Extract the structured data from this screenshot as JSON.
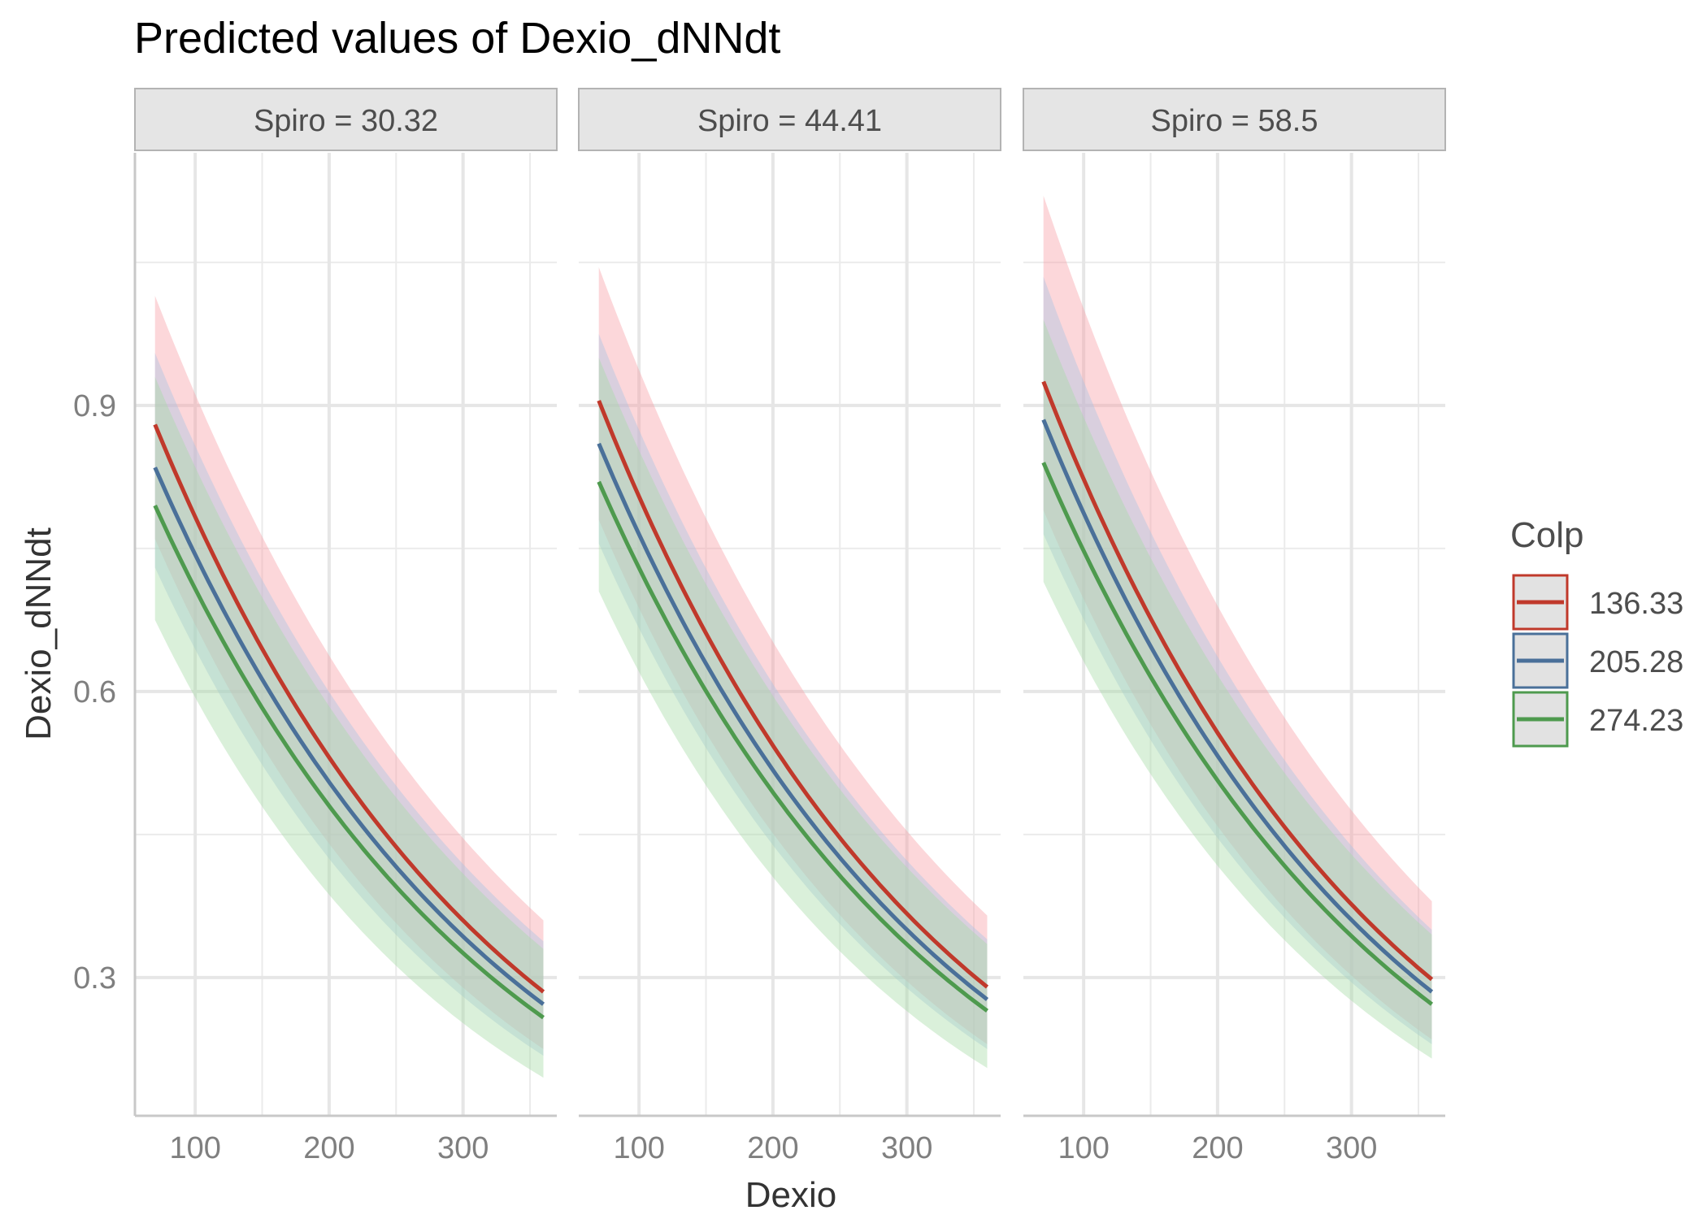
{
  "chart_data": {
    "type": "line",
    "title": "Predicted values of Dexio_dNNdt",
    "xlabel": "Dexio",
    "ylabel": "Dexio_dNNdt",
    "xlim": [
      55,
      370
    ],
    "ylim": [
      0.155,
      1.165
    ],
    "x_ticks": [
      100,
      200,
      300
    ],
    "x_tick_labels": [
      "100",
      "200",
      "300"
    ],
    "y_ticks": [
      0.3,
      0.6,
      0.9
    ],
    "y_tick_labels": [
      "0.3",
      "0.6",
      "0.9"
    ],
    "grid": true,
    "legend": {
      "title": "Colp",
      "placement": "right",
      "items": [
        "136.33",
        "205.28",
        "274.23"
      ]
    },
    "colors": {
      "136.33": "#C0392B",
      "205.28": "#4A7099",
      "274.23": "#4E9A4E",
      "band_136.33": "#F8A0A8",
      "band_205.28": "#A9C4E4",
      "band_274.23": "#A8DCA8"
    },
    "facets": [
      {
        "label": "Spiro = 30.32",
        "series": [
          {
            "name": "136.33",
            "x": [
              70,
              360
            ],
            "y": [
              0.88,
              0.285
            ],
            "lower": [
              0.76,
              0.225
            ],
            "upper": [
              1.015,
              0.36
            ]
          },
          {
            "name": "205.28",
            "x": [
              70,
              360
            ],
            "y": [
              0.835,
              0.272
            ],
            "lower": [
              0.73,
              0.218
            ],
            "upper": [
              0.955,
              0.338
            ]
          },
          {
            "name": "274.23",
            "x": [
              70,
              360
            ],
            "y": [
              0.795,
              0.258
            ],
            "lower": [
              0.675,
              0.195
            ],
            "upper": [
              0.93,
              0.33
            ]
          }
        ]
      },
      {
        "label": "Spiro = 44.41",
        "series": [
          {
            "name": "136.33",
            "x": [
              70,
              360
            ],
            "y": [
              0.905,
              0.29
            ],
            "lower": [
              0.78,
              0.23
            ],
            "upper": [
              1.045,
              0.365
            ]
          },
          {
            "name": "205.28",
            "x": [
              70,
              360
            ],
            "y": [
              0.86,
              0.277
            ],
            "lower": [
              0.755,
              0.225
            ],
            "upper": [
              0.975,
              0.34
            ]
          },
          {
            "name": "274.23",
            "x": [
              70,
              360
            ],
            "y": [
              0.82,
              0.265
            ],
            "lower": [
              0.705,
              0.205
            ],
            "upper": [
              0.95,
              0.335
            ]
          }
        ]
      },
      {
        "label": "Spiro = 58.5",
        "series": [
          {
            "name": "136.33",
            "x": [
              70,
              360
            ],
            "y": [
              0.925,
              0.298
            ],
            "lower": [
              0.79,
              0.235
            ],
            "upper": [
              1.12,
              0.38
            ]
          },
          {
            "name": "205.28",
            "x": [
              70,
              360
            ],
            "y": [
              0.885,
              0.285
            ],
            "lower": [
              0.765,
              0.23
            ],
            "upper": [
              1.035,
              0.35
            ]
          },
          {
            "name": "274.23",
            "x": [
              70,
              360
            ],
            "y": [
              0.84,
              0.272
            ],
            "lower": [
              0.715,
              0.215
            ],
            "upper": [
              0.99,
              0.345
            ]
          }
        ]
      }
    ]
  }
}
